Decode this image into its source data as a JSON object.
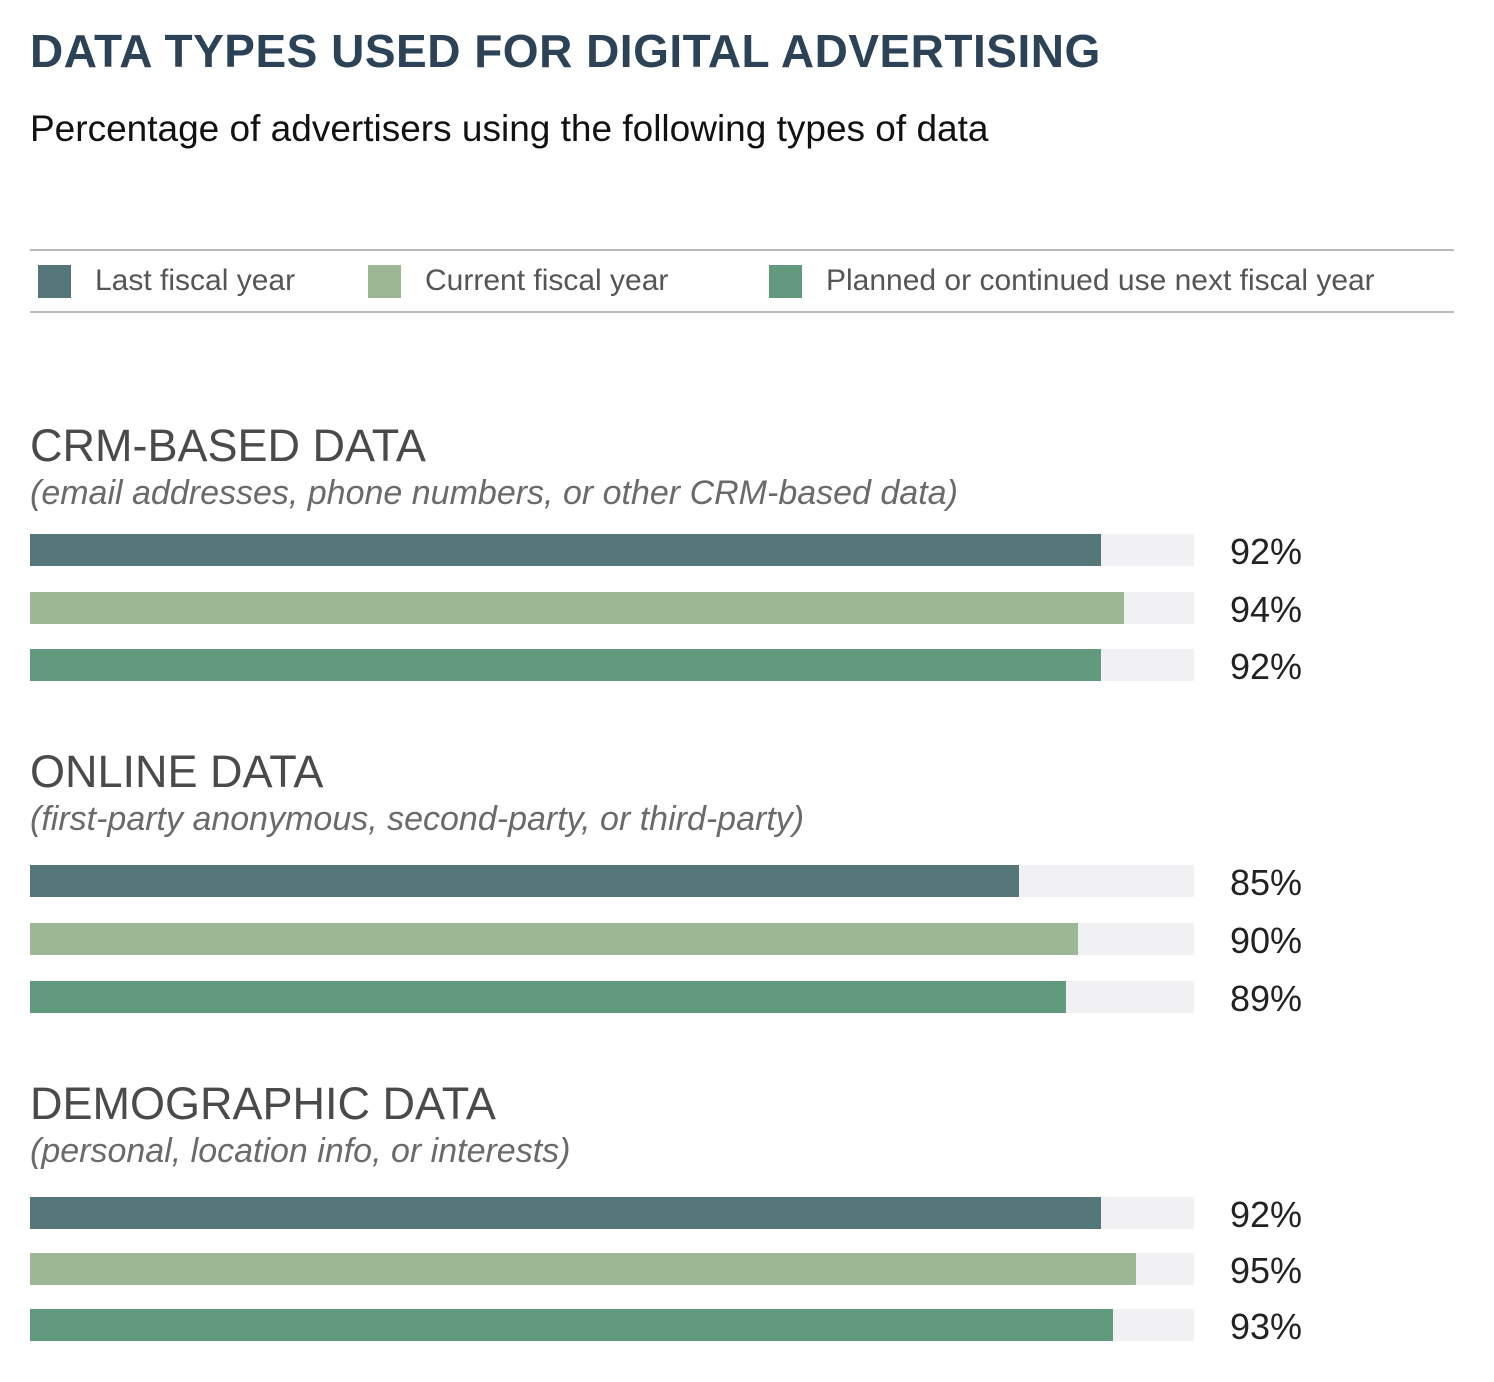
{
  "title": "DATA TYPES USED FOR DIGITAL ADVERTISING",
  "subtitle": "Percentage of advertisers using the following types of data",
  "colors": {
    "last": "#557779",
    "current": "#9db795",
    "planned": "#619a7c",
    "track": "#f1f1f3"
  },
  "legend": [
    {
      "label": "Last fiscal year",
      "color": "#557779"
    },
    {
      "label": "Current fiscal year",
      "color": "#9db795"
    },
    {
      "label": "Planned or continued use next fiscal year",
      "color": "#619a7c"
    }
  ],
  "chart_data": {
    "type": "bar",
    "orientation": "horizontal",
    "title": "DATA TYPES USED FOR DIGITAL ADVERTISING",
    "subtitle": "Percentage of advertisers using the following types of data",
    "xlim": [
      0,
      100
    ],
    "legend_position": "top",
    "categories": [
      "CRM-BASED DATA",
      "ONLINE DATA",
      "DEMOGRAPHIC DATA"
    ],
    "category_notes": [
      "(email addresses, phone numbers, or other CRM-based data)",
      "(first-party anonymous, second-party, or third-party)",
      "(personal, location info, or interests)"
    ],
    "series": [
      {
        "name": "Last fiscal year",
        "values": [
          92,
          85,
          92
        ],
        "labels": [
          "92%",
          "85%",
          "92%"
        ]
      },
      {
        "name": "Current fiscal year",
        "values": [
          94,
          90,
          95
        ],
        "labels": [
          "94%",
          "90%",
          "95%"
        ]
      },
      {
        "name": "Planned or continued use next fiscal year",
        "values": [
          92,
          89,
          93
        ],
        "labels": [
          "92%",
          "89%",
          "93%"
        ]
      }
    ]
  }
}
